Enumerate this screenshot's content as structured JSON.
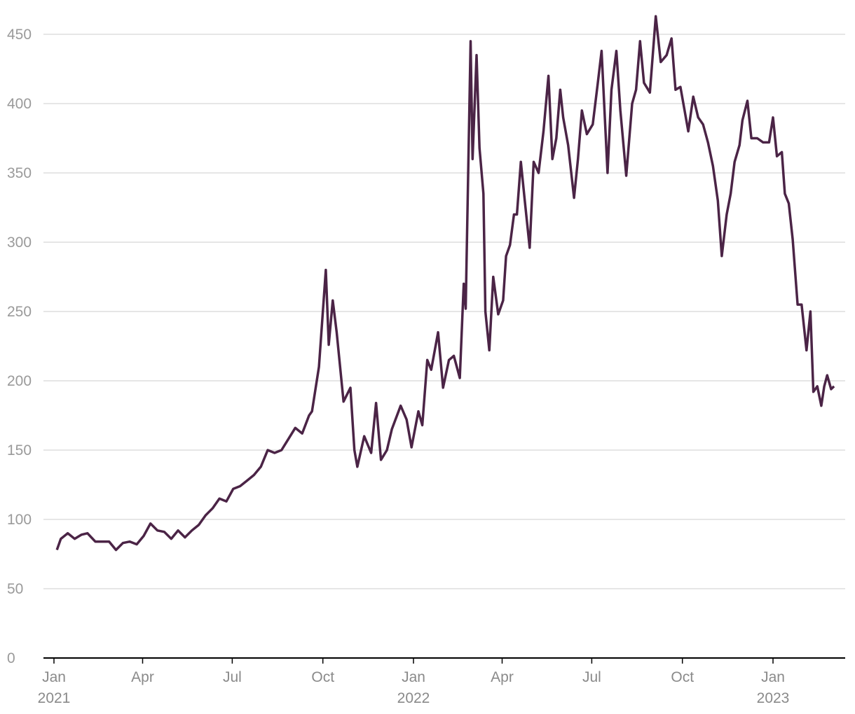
{
  "chart_data": {
    "type": "line",
    "x": [
      "2021-01-04",
      "2021-01-08",
      "2021-01-15",
      "2021-01-22",
      "2021-01-29",
      "2021-02-04",
      "2021-02-12",
      "2021-02-19",
      "2021-02-26",
      "2021-03-05",
      "2021-03-12",
      "2021-03-19",
      "2021-03-26",
      "2021-04-02",
      "2021-04-09",
      "2021-04-16",
      "2021-04-23",
      "2021-04-30",
      "2021-05-07",
      "2021-05-14",
      "2021-05-21",
      "2021-05-28",
      "2021-06-04",
      "2021-06-11",
      "2021-06-18",
      "2021-06-25",
      "2021-07-02",
      "2021-07-09",
      "2021-07-16",
      "2021-07-23",
      "2021-07-30",
      "2021-08-06",
      "2021-08-13",
      "2021-08-20",
      "2021-08-27",
      "2021-09-03",
      "2021-09-10",
      "2021-09-17",
      "2021-09-20",
      "2021-09-27",
      "2021-10-04",
      "2021-10-07",
      "2021-10-11",
      "2021-10-15",
      "2021-10-22",
      "2021-10-29",
      "2021-11-02",
      "2021-11-05",
      "2021-11-12",
      "2021-11-19",
      "2021-11-24",
      "2021-11-29",
      "2021-12-05",
      "2021-12-10",
      "2021-12-19",
      "2021-12-25",
      "2021-12-30",
      "2022-01-06",
      "2022-01-10",
      "2022-01-15",
      "2022-01-19",
      "2022-01-26",
      "2022-01-31",
      "2022-02-06",
      "2022-02-11",
      "2022-02-17",
      "2022-02-21",
      "2022-02-23",
      "2022-02-28",
      "2022-03-02",
      "2022-03-06",
      "2022-03-09",
      "2022-03-13",
      "2022-03-15",
      "2022-03-19",
      "2022-03-23",
      "2022-03-28",
      "2022-04-02",
      "2022-04-05",
      "2022-04-09",
      "2022-04-13",
      "2022-04-16",
      "2022-04-20",
      "2022-04-24",
      "2022-04-29",
      "2022-05-03",
      "2022-05-08",
      "2022-05-13",
      "2022-05-18",
      "2022-05-22",
      "2022-05-26",
      "2022-05-30",
      "2022-06-02",
      "2022-06-07",
      "2022-06-13",
      "2022-06-17",
      "2022-06-21",
      "2022-06-26",
      "2022-07-02",
      "2022-07-07",
      "2022-07-11",
      "2022-07-17",
      "2022-07-21",
      "2022-07-26",
      "2022-07-30",
      "2022-08-05",
      "2022-08-11",
      "2022-08-15",
      "2022-08-19",
      "2022-08-23",
      "2022-08-29",
      "2022-09-04",
      "2022-09-09",
      "2022-09-15",
      "2022-09-20",
      "2022-09-24",
      "2022-09-29",
      "2022-10-07",
      "2022-10-12",
      "2022-10-17",
      "2022-10-22",
      "2022-10-27",
      "2022-11-01",
      "2022-11-06",
      "2022-11-10",
      "2022-11-15",
      "2022-11-19",
      "2022-11-23",
      "2022-11-28",
      "2022-12-01",
      "2022-12-06",
      "2022-12-10",
      "2022-12-16",
      "2022-12-22",
      "2022-12-28",
      "2023-01-01",
      "2023-01-05",
      "2023-01-10",
      "2023-01-13",
      "2023-01-17",
      "2023-01-21",
      "2023-01-26",
      "2023-01-30",
      "2023-02-04",
      "2023-02-08",
      "2023-02-11",
      "2023-02-15",
      "2023-02-19",
      "2023-02-22",
      "2023-02-25",
      "2023-03-01",
      "2023-03-04"
    ],
    "series": [
      {
        "color": "#4b2446",
        "values": [
          78,
          86,
          90,
          86,
          89,
          90,
          84,
          84,
          84,
          78,
          83,
          84,
          82,
          88,
          97,
          92,
          91,
          86,
          92,
          87,
          92,
          96,
          103,
          108,
          115,
          113,
          122,
          124,
          128,
          132,
          138,
          150,
          148,
          150,
          158,
          166,
          162,
          175,
          178,
          210,
          280,
          226,
          258,
          235,
          185,
          195,
          150,
          138,
          160,
          148,
          184,
          143,
          150,
          165,
          182,
          172,
          152,
          178,
          168,
          215,
          208,
          235,
          195,
          215,
          218,
          202,
          270,
          252,
          445,
          360,
          435,
          368,
          335,
          250,
          222,
          275,
          248,
          258,
          290,
          298,
          320,
          320,
          358,
          330,
          296,
          358,
          350,
          380,
          420,
          360,
          375,
          410,
          390,
          370,
          332,
          360,
          395,
          378,
          385,
          414,
          438,
          350,
          410,
          438,
          395,
          348,
          400,
          410,
          445,
          415,
          408,
          463,
          430,
          435,
          447,
          410,
          412,
          380,
          405,
          390,
          385,
          372,
          355,
          330,
          290,
          320,
          335,
          358,
          370,
          388,
          402,
          375,
          375,
          372,
          372,
          390,
          362,
          365,
          335,
          328,
          302,
          255,
          255,
          222,
          250,
          192,
          196,
          182,
          196,
          204,
          194,
          196
        ]
      }
    ],
    "xticks": [
      {
        "value": "2021-01",
        "label": "Jan 2021"
      },
      {
        "value": "2021-04",
        "label": "Apr"
      },
      {
        "value": "2021-07",
        "label": "Jul"
      },
      {
        "value": "2021-10",
        "label": "Oct"
      },
      {
        "value": "2022-01",
        "label": "Jan 2022"
      },
      {
        "value": "2022-04",
        "label": "Apr"
      },
      {
        "value": "2022-07",
        "label": "Jul"
      },
      {
        "value": "2022-10",
        "label": "Oct"
      },
      {
        "value": "2023-01",
        "label": "Jan 2023"
      }
    ],
    "ylim": [
      0,
      450
    ],
    "yticks": [
      0,
      50,
      100,
      150,
      200,
      250,
      300,
      350,
      400,
      450
    ],
    "grid": true
  }
}
